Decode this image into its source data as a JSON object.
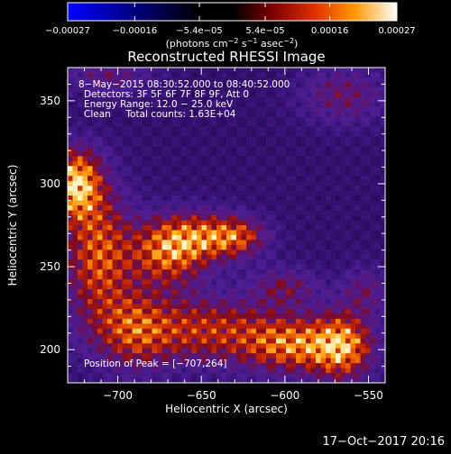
{
  "chart_data": {
    "type": "heatmap",
    "title": "Reconstructed RHESSI Image",
    "xlabel": "Heliocentric X (arcsec)",
    "ylabel": "Heliocentric Y (arcsec)",
    "xlim": [
      -730,
      -540
    ],
    "ylim": [
      180,
      370
    ],
    "xticks": [
      -700,
      -650,
      -600,
      -550
    ],
    "xtick_labels": [
      "−700",
      "−650",
      "−600",
      "−550"
    ],
    "yticks": [
      200,
      250,
      300,
      350
    ],
    "ytick_labels": [
      "200",
      "250",
      "300",
      "350"
    ],
    "colorbar": {
      "range": [
        -0.00027,
        0.00027
      ],
      "ticks": [
        -0.00027,
        -0.00016,
        -5.4e-05,
        5.4e-05,
        0.00016,
        0.00027
      ],
      "tick_labels": [
        "−0.00027",
        "−0.00016",
        "−5.4e−05",
        "5.4e−05",
        "0.00016",
        "0.00027"
      ],
      "label_prefix": "(photons cm",
      "label_exp1": "−2",
      "label_mid1": " s",
      "label_exp2": "−1",
      "label_mid2": " asec",
      "label_exp3": "−2",
      "label_suffix": ")"
    },
    "annotations": [
      "8−May−2015 08:30:52.000 to 08:40:52.000",
      "Detectors: 3F 5F 6F 7F 8F 9F, Att 0",
      "Energy Range: 12.0 − 25.0 keV",
      "Clean     Total counts: 1.63E+04"
    ],
    "peak_label": "Position of Peak = [−707,264]",
    "peak_position": [
      -707,
      264
    ],
    "sources": [
      {
        "x": -725,
        "y": 300,
        "sx": 10,
        "sy": 14,
        "amp": 1.0
      },
      {
        "x": -712,
        "y": 258,
        "sx": 14,
        "sy": 28,
        "amp": 0.7
      },
      {
        "x": -670,
        "y": 258,
        "sx": 16,
        "sy": 14,
        "amp": 0.7
      },
      {
        "x": -650,
        "y": 268,
        "sx": 18,
        "sy": 10,
        "amp": 0.6
      },
      {
        "x": -628,
        "y": 268,
        "sx": 12,
        "sy": 8,
        "amp": 0.5
      },
      {
        "x": -650,
        "y": 212,
        "sx": 38,
        "sy": 14,
        "amp": 0.6
      },
      {
        "x": -592,
        "y": 202,
        "sx": 22,
        "sy": 11,
        "amp": 0.7
      },
      {
        "x": -565,
        "y": 202,
        "sx": 12,
        "sy": 14,
        "amp": 0.7
      },
      {
        "x": -600,
        "y": 238,
        "sx": 14,
        "sy": 8,
        "amp": 0.35
      },
      {
        "x": -552,
        "y": 235,
        "sx": 10,
        "sy": 10,
        "amp": 0.3
      },
      {
        "x": -565,
        "y": 353,
        "sx": 18,
        "sy": 12,
        "amp": 0.35
      },
      {
        "x": -705,
        "y": 365,
        "sx": 18,
        "sy": 8,
        "amp": 0.3
      },
      {
        "x": -690,
        "y": 212,
        "sx": 14,
        "sy": 18,
        "amp": 0.4
      }
    ]
  },
  "footer": {
    "timestamp": "17−Oct−2017 20:16"
  }
}
